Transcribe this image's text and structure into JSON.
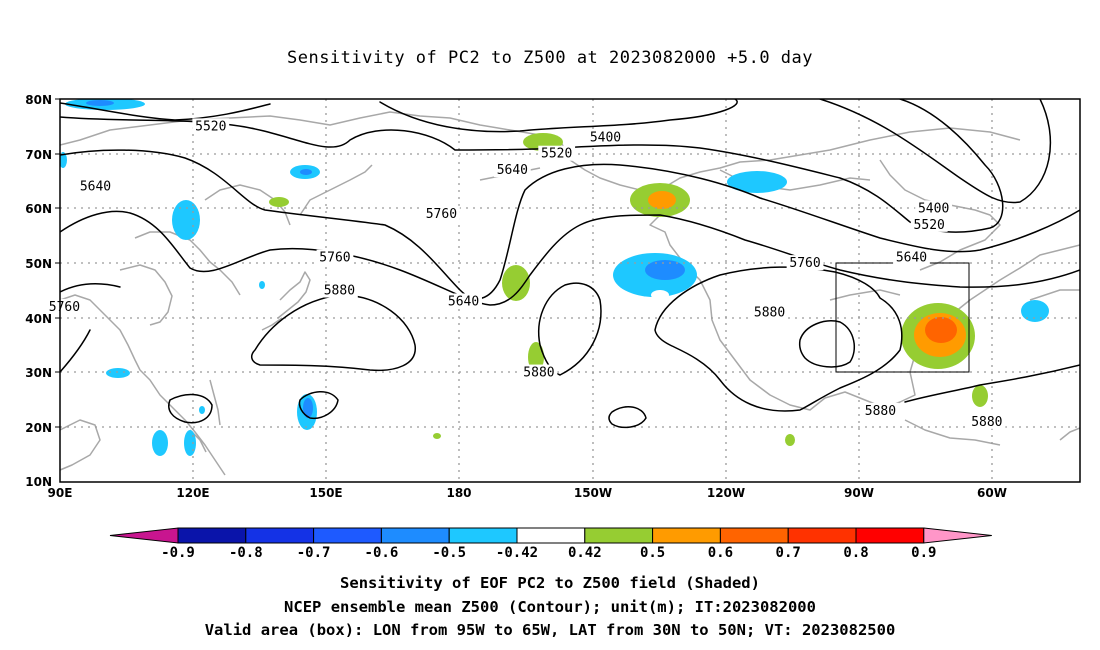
{
  "title": "Sensitivity of PC2 to Z500 at 2023082000 +5.0 day",
  "axes": {
    "lat_labels": [
      "80N",
      "70N",
      "60N",
      "50N",
      "40N",
      "30N",
      "20N",
      "10N"
    ],
    "lon_labels": [
      "90E",
      "120E",
      "150E",
      "180",
      "150W",
      "120W",
      "90W",
      "60W"
    ]
  },
  "contour_levels": [
    "5400",
    "5520",
    "5640",
    "5760",
    "5880"
  ],
  "contour_labels": [
    {
      "text": "5520",
      "lon": 124,
      "lat": 75
    },
    {
      "text": "5640",
      "lon": 98,
      "lat": 64
    },
    {
      "text": "5400",
      "lon": 213,
      "lat": 73
    },
    {
      "text": "5520",
      "lon": 202,
      "lat": 70
    },
    {
      "text": "5640",
      "lon": 192,
      "lat": 67
    },
    {
      "text": "5760",
      "lon": 176,
      "lat": 59
    },
    {
      "text": "5760",
      "lon": 152,
      "lat": 51
    },
    {
      "text": "5880",
      "lon": 153,
      "lat": 45
    },
    {
      "text": "5640",
      "lon": 181,
      "lat": 43
    },
    {
      "text": "5760",
      "lon": 91,
      "lat": 42
    },
    {
      "text": "5880",
      "lon": 198,
      "lat": 30
    },
    {
      "text": "5760",
      "lon": 258,
      "lat": 50
    },
    {
      "text": "5880",
      "lon": 250,
      "lat": 41
    },
    {
      "text": "5400",
      "lon": 287,
      "lat": 60
    },
    {
      "text": "5520",
      "lon": 286,
      "lat": 57
    },
    {
      "text": "5640",
      "lon": 282,
      "lat": 51
    },
    {
      "text": "5880",
      "lon": 275,
      "lat": 23
    },
    {
      "text": "5880",
      "lon": 299,
      "lat": 21
    }
  ],
  "colorbar": {
    "levels": [
      "-0.9",
      "-0.8",
      "-0.7",
      "-0.6",
      "-0.5",
      "-0.42",
      "0.42",
      "0.5",
      "0.6",
      "0.7",
      "0.8",
      "0.9"
    ],
    "colors": [
      "#c8158f",
      "#0a14aa",
      "#1432e6",
      "#1e5aff",
      "#1e8cff",
      "#1ec8ff",
      "#ffffff",
      "#96cd32",
      "#ff9b00",
      "#ff6400",
      "#ff3200",
      "#ff0000",
      "#ff96c8"
    ]
  },
  "valid_box": {
    "lon_min": 265,
    "lon_max": 295,
    "lat_min": 30,
    "lat_max": 50
  },
  "captions": {
    "line1": "Sensitivity of EOF PC2 to Z500 field (Shaded)",
    "line2": "NCEP ensemble mean Z500 (Contour); unit(m); IT:2023082000",
    "line3": "Valid area (box): LON from 95W to 65W, LAT from 30N to 50N; VT: 2023082500"
  }
}
